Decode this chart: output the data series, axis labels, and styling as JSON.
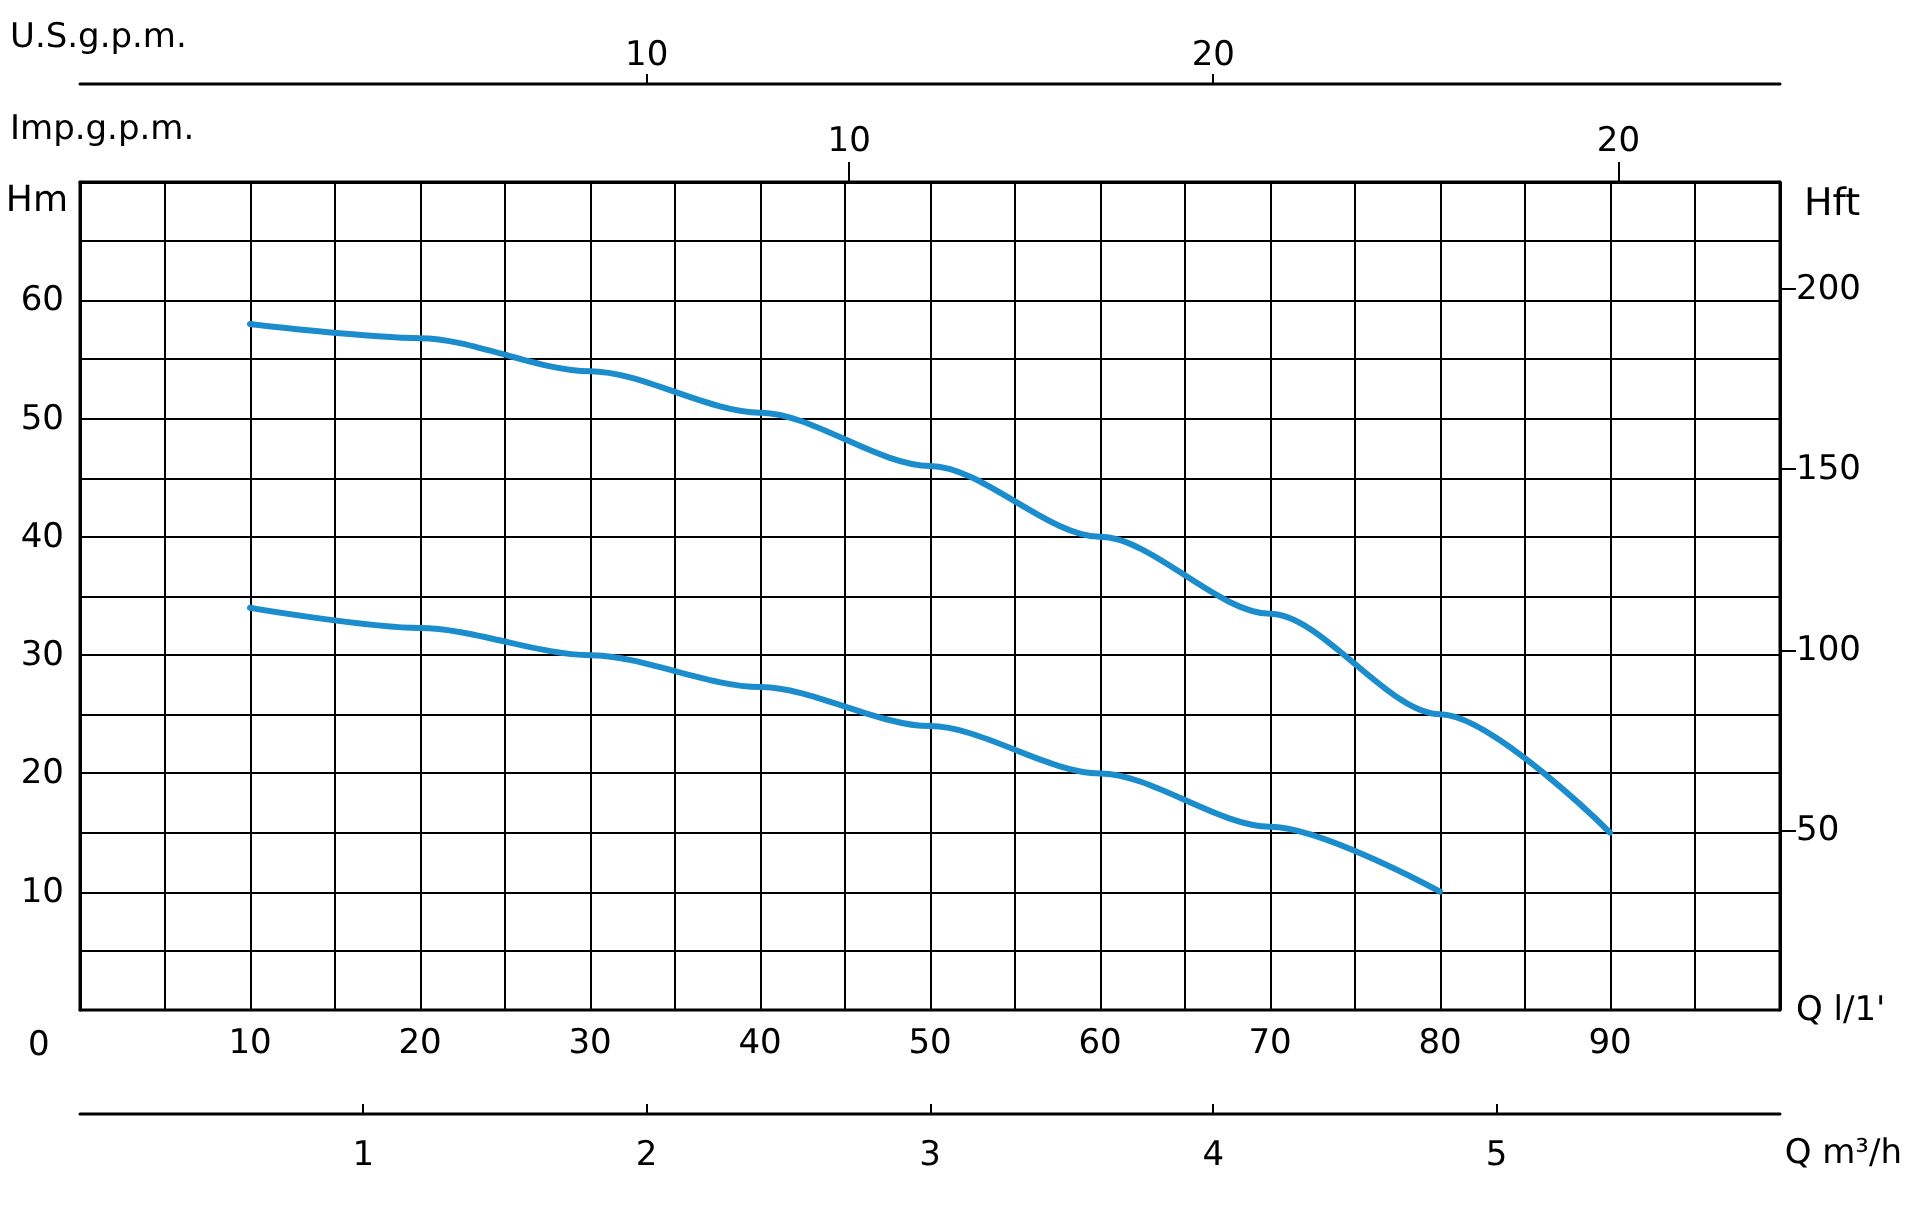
{
  "chart_data": {
    "type": "line",
    "xlabel": "Q l/1'",
    "ylabel": "Hm",
    "y2label": "Hft",
    "x2label": "Imp.g.p.m.",
    "xlim": [
      0,
      100
    ],
    "xticks": [
      {
        "value": 0,
        "label": null
      },
      {
        "value": 5,
        "label": null
      },
      10,
      {
        "value": 15,
        "label": null
      },
      20,
      {
        "value": 25,
        "label": null
      },
      30,
      {
        "value": 35,
        "label": null
      },
      40,
      {
        "value": 45,
        "label": null
      },
      50,
      {
        "value": 55,
        "label": null
      },
      60,
      {
        "value": 65,
        "label": null
      },
      70,
      {
        "value": 75,
        "label": null
      },
      80,
      {
        "value": 85,
        "label": null
      },
      90,
      {
        "value": 95,
        "label": null
      },
      {
        "value": 100,
        "label": null
      }
    ],
    "ylim": [
      0,
      70
    ],
    "yticks": [
      {
        "value": 5,
        "label": null
      },
      10,
      {
        "value": 15,
        "label": null
      },
      20,
      {
        "value": 25,
        "label": null
      },
      30,
      {
        "value": 35,
        "label": null
      },
      40,
      {
        "value": 45,
        "label": null
      },
      50,
      {
        "value": 55,
        "label": null
      },
      60,
      {
        "value": 65,
        "label": null
      },
      {
        "value": 70,
        "label": null
      }
    ],
    "y2lim": [
      0,
      229.7
    ],
    "y2ticks": [
      50,
      100,
      150,
      200
    ],
    "x2lim": [
      0,
      22.1
    ],
    "x2ticks": [
      10,
      20
    ],
    "annotations": [
      "0",
      "U.S.g.p.m.",
      "10",
      "20",
      "Q m³/h",
      "1",
      "2",
      "3",
      "4",
      "5"
    ],
    "grid": true,
    "marker": "none",
    "line_style": "solid",
    "x": [
      10,
      20,
      30,
      40,
      50,
      60,
      70,
      80,
      90
    ],
    "series": [
      {
        "color": "#1b8ccc",
        "values": [
          58,
          56.8,
          54,
          50.5,
          46,
          40,
          33.5,
          25,
          15
        ]
      },
      {
        "color": "#1b8ccc",
        "x": [
          10,
          20,
          30,
          40,
          50,
          60,
          70,
          80
        ],
        "values": [
          34,
          32.3,
          30,
          27.3,
          24,
          20,
          15.5,
          10
        ]
      }
    ]
  }
}
